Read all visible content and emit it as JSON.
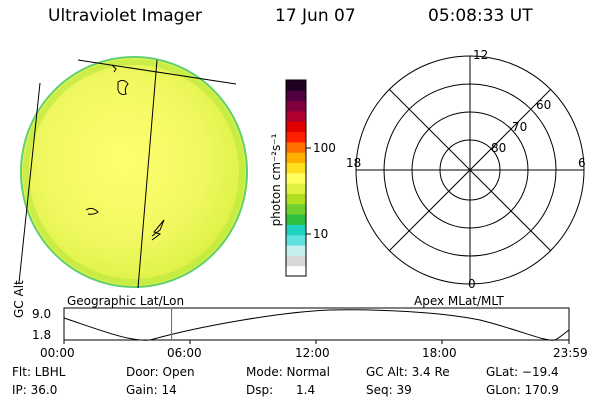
{
  "header": {
    "instrument": "Ultraviolet Imager",
    "date": "17 Jun 07",
    "time": "05:08:33 UT"
  },
  "colorbar": {
    "unit_label": "photon cm⁻²s⁻¹",
    "ticks": [
      "100",
      "10"
    ],
    "scale": "log",
    "colors": [
      "#ffffff",
      "#d8d8d8",
      "#c4f0f0",
      "#60e0e0",
      "#20d0c0",
      "#30c040",
      "#70d030",
      "#b0e020",
      "#e0f040",
      "#ffff60",
      "#ffe020",
      "#ffb000",
      "#ff7000",
      "#ff2000",
      "#e00000",
      "#b00030",
      "#800040",
      "#500040",
      "#200020"
    ]
  },
  "polar": {
    "mlt_labels": {
      "top": "12",
      "left": "18",
      "right": "6",
      "bottom": "0"
    },
    "lat_labels": [
      "60",
      "70",
      "80"
    ]
  },
  "timeline": {
    "left_title": "Geographic Lat/Lon",
    "right_title": "Apex MLat/MLT",
    "y_axis_label": "GC Alt",
    "y_ticks": [
      "9.0",
      "1.8"
    ],
    "x_ticks": [
      "00:00",
      "06:00",
      "12:00",
      "18:00",
      "23:59"
    ],
    "current_time_fraction": 0.213
  },
  "info": {
    "filter": "Flt: LBHL",
    "ip": "IP: 36.0",
    "door": "Door: Open",
    "gain": "Gain: 14",
    "mode": "Mode: Normal",
    "dsp": "Dsp:      1.4",
    "gc_alt": "GC Alt: 3.4 Re",
    "seq": "Seq: 39",
    "glat": "GLat: −19.4",
    "glon": "GLon: 170.9"
  }
}
